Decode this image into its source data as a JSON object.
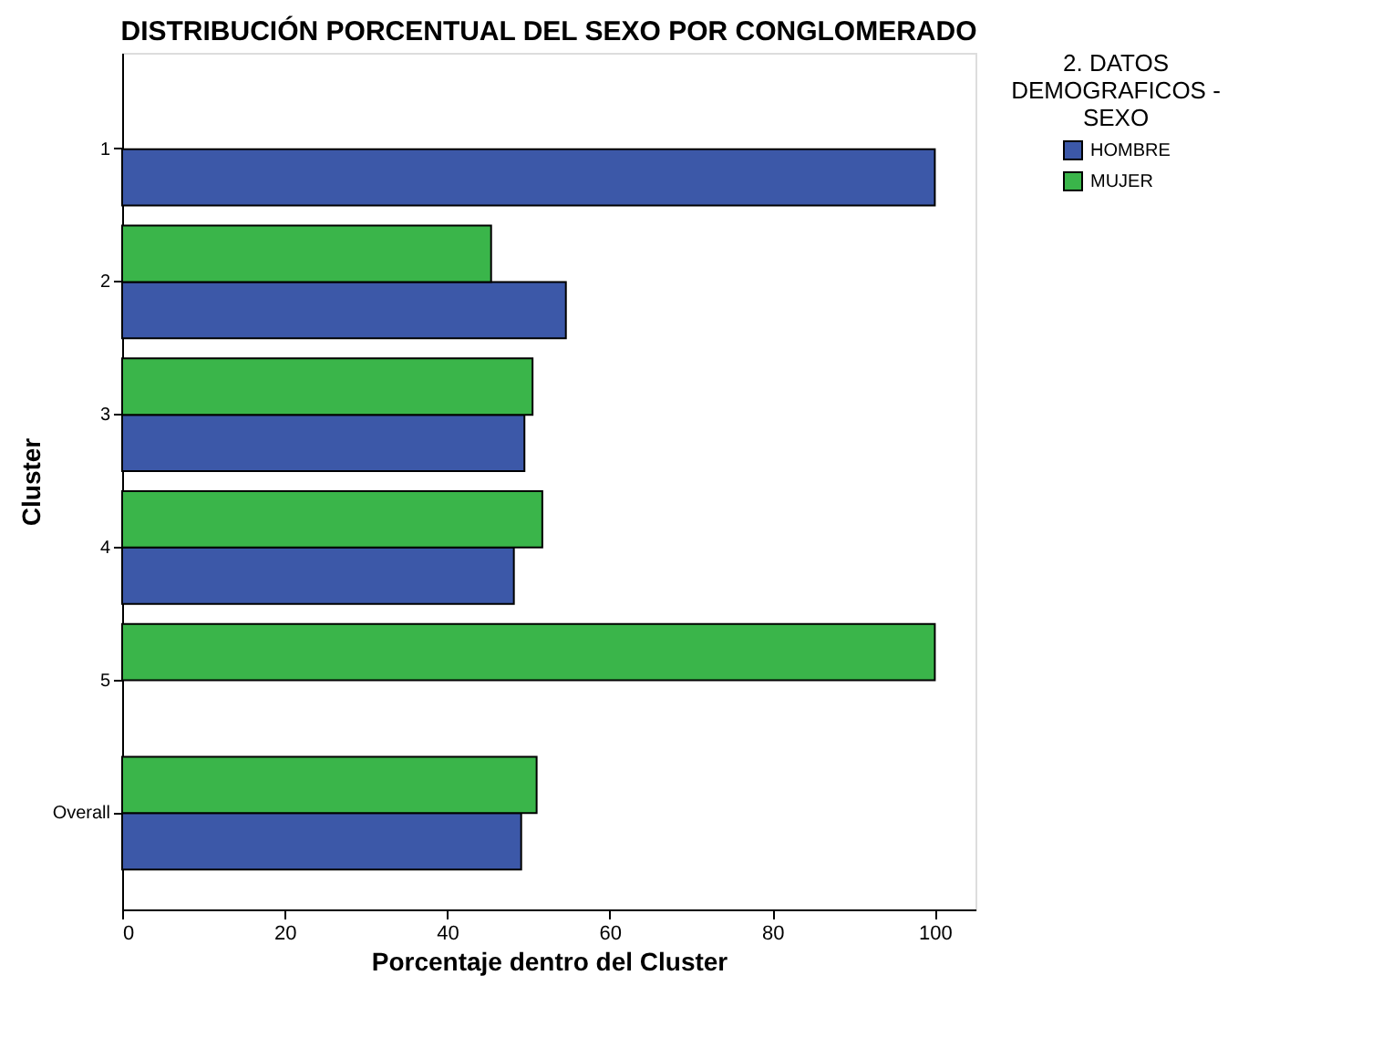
{
  "chart_data": {
    "type": "bar",
    "orientation": "horizontal",
    "title": "DISTRIBUCIÓN PORCENTUAL DEL SEXO POR CONGLOMERADO",
    "xlabel": "Porcentaje dentro del Cluster",
    "ylabel": "Cluster",
    "legend_title": "2. DATOS DEMOGRAFICOS - SEXO",
    "categories": [
      "1",
      "2",
      "3",
      "4",
      "5",
      "Overall"
    ],
    "series": [
      {
        "name": "HOMBRE",
        "color": "#3c58a8",
        "values": [
          100,
          54.6,
          49.5,
          48.2,
          null,
          49.1
        ]
      },
      {
        "name": "MUJER",
        "color": "#3ab54a",
        "values": [
          null,
          45.4,
          50.5,
          51.7,
          100,
          51.0
        ]
      }
    ],
    "xlim": [
      0,
      105
    ],
    "xticks": [
      0,
      20,
      40,
      60,
      80,
      100
    ],
    "grid": false,
    "legend": "right"
  }
}
